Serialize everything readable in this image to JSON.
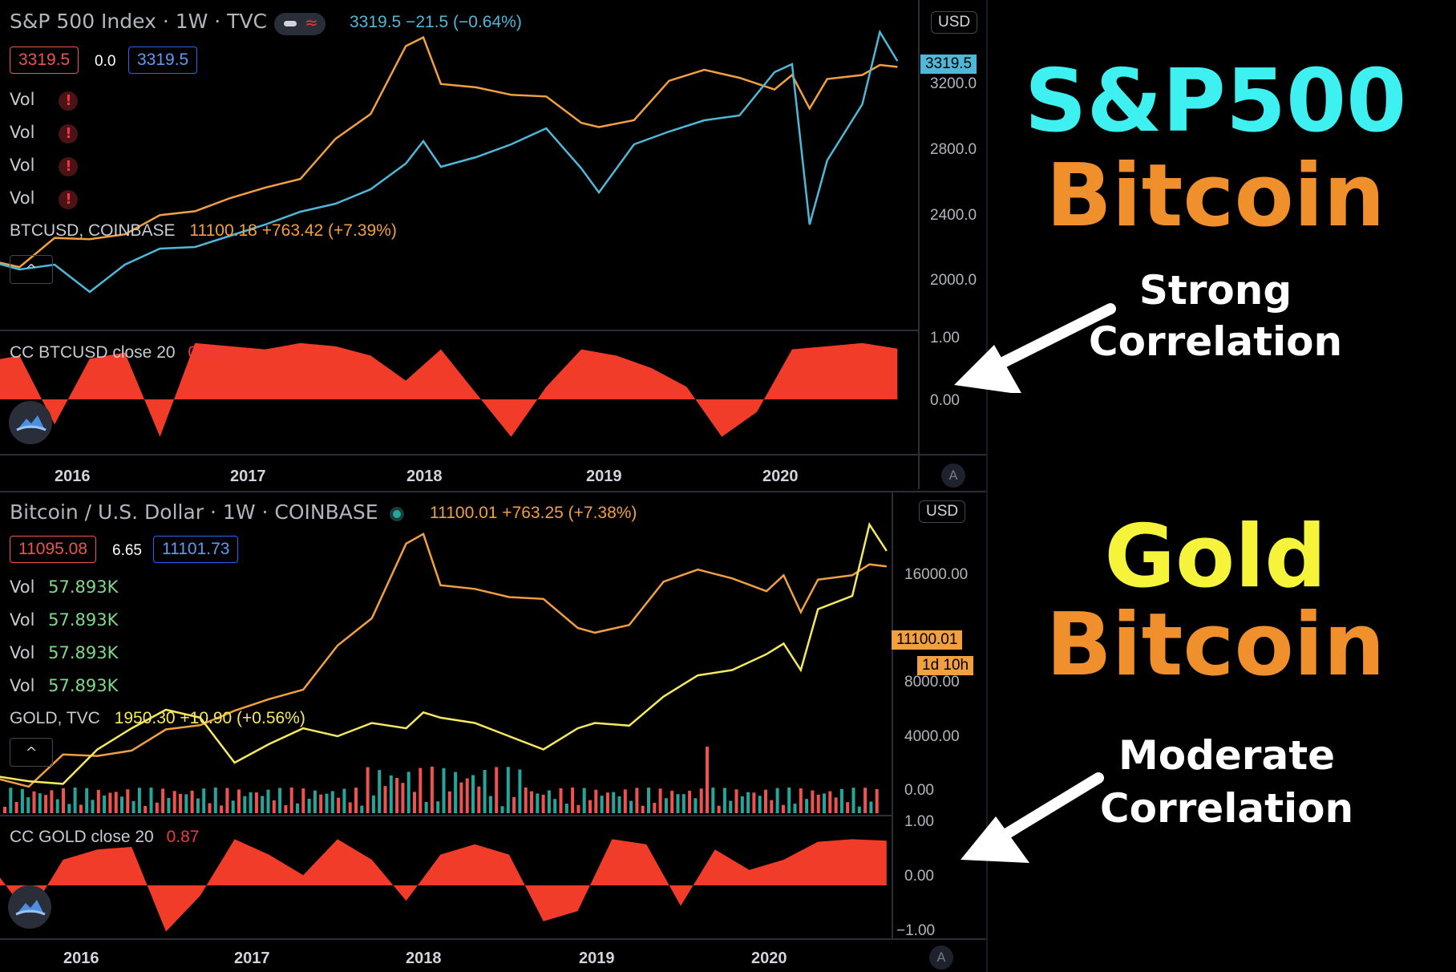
{
  "top": {
    "title": "S&P 500 Index · 1W · TVC",
    "quote": "3319.5  −21.5 (−0.64%)",
    "bid": "3319.5",
    "spread": "0.0",
    "ask": "3319.5",
    "vol_rows": [
      "Vol",
      "Vol",
      "Vol",
      "Vol"
    ],
    "overlay_name": "BTCUSD, COINBASE",
    "overlay_quote": "11100.18 +763.42 (+7.39%)",
    "currency": "USD",
    "last_price_tag": "3319.5",
    "price_ticks": [
      "3200.0",
      "2800.0",
      "2400.0",
      "2000.0"
    ],
    "indicator_label": "CC BTCUSD close 20",
    "indicator_value": "0.81",
    "indicator_ticks": [
      "1.00",
      "0.00"
    ],
    "years": [
      "2016",
      "2017",
      "2018",
      "2019",
      "2020"
    ],
    "auto_btn": "A",
    "collapse_glyph": "^"
  },
  "bottom": {
    "title": "Bitcoin / U.S. Dollar · 1W · COINBASE",
    "quote": "11100.01  +763.25 (+7.38%)",
    "bid": "11095.08",
    "spread": "6.65",
    "ask": "11101.73",
    "vol_rows": [
      {
        "label": "Vol",
        "value": "57.893K"
      },
      {
        "label": "Vol",
        "value": "57.893K"
      },
      {
        "label": "Vol",
        "value": "57.893K"
      },
      {
        "label": "Vol",
        "value": "57.893K"
      }
    ],
    "overlay_name": "GOLD, TVC",
    "overlay_quote": "1950.30 +10.90 (+0.56%)",
    "currency": "USD",
    "last_price_tag": "11100.01",
    "countdown_tag": "1d 10h",
    "price_ticks": [
      "16000.00",
      "8000.00",
      "4000.00",
      "0.00"
    ],
    "indicator_label": "CC GOLD close 20",
    "indicator_value": "0.87",
    "indicator_ticks": [
      "1.00",
      "0.00",
      "−1.00"
    ],
    "years": [
      "2016",
      "2017",
      "2018",
      "2019",
      "2020"
    ],
    "auto_btn": "A",
    "collapse_glyph": "^"
  },
  "annotations": {
    "top_line1": "S&P500",
    "top_line2": "Bitcoin",
    "top_caption1": "Strong",
    "top_caption2": "Correlation",
    "bottom_line1": "Gold",
    "bottom_line2": "Bitcoin",
    "bottom_caption1": "Moderate",
    "bottom_caption2": "Correlation"
  },
  "colors": {
    "spx": "#4fb8d8",
    "btc": "#f0a040",
    "gold": "#f5e960",
    "corr": "#f03c28",
    "vol_up": "#26a69a",
    "vol_down": "#ef5350",
    "cyan_title": "#3ff0f0",
    "orange_title": "#f0902c",
    "yellow_title": "#f5f43a"
  },
  "chart_data": [
    {
      "type": "line",
      "title": "S&P 500 Index · 1W · TVC",
      "x": [
        2015.5,
        2015.7,
        2015.9,
        2016.1,
        2016.3,
        2016.5,
        2016.7,
        2016.9,
        2017.1,
        2017.3,
        2017.5,
        2017.7,
        2017.9,
        2018.0,
        2018.1,
        2018.3,
        2018.5,
        2018.7,
        2018.9,
        2019.0,
        2019.2,
        2019.4,
        2019.6,
        2019.8,
        2020.0,
        2020.1,
        2020.2,
        2020.3,
        2020.5,
        2020.6,
        2020.7
      ],
      "series": [
        {
          "name": "S&P 500",
          "values": [
            2080,
            2020,
            2050,
            1880,
            2050,
            2150,
            2160,
            2230,
            2300,
            2380,
            2430,
            2520,
            2680,
            2820,
            2660,
            2720,
            2800,
            2900,
            2650,
            2500,
            2800,
            2880,
            2950,
            2980,
            3250,
            3300,
            2300,
            2700,
            3050,
            3500,
            3319.5
          ]
        },
        {
          "name": "BTCUSD, COINBASE",
          "values": [
            280,
            240,
            420,
            410,
            450,
            650,
            700,
            900,
            1100,
            1300,
            2800,
            4500,
            16500,
            19500,
            8000,
            7500,
            6500,
            6300,
            3800,
            3500,
            4000,
            8500,
            10500,
            9000,
            7200,
            9500,
            5000,
            8800,
            9500,
            11500,
            11100.18
          ]
        }
      ],
      "ylim": [
        1800,
        3500
      ]
    },
    {
      "type": "area",
      "title": "CC BTCUSD close 20",
      "x": [
        2015.5,
        2015.7,
        2015.9,
        2016.1,
        2016.3,
        2016.5,
        2016.7,
        2016.9,
        2017.1,
        2017.3,
        2017.5,
        2017.7,
        2017.9,
        2018.1,
        2018.3,
        2018.5,
        2018.7,
        2018.9,
        2019.1,
        2019.3,
        2019.5,
        2019.7,
        2019.9,
        2020.1,
        2020.3,
        2020.5,
        2020.7
      ],
      "values": [
        0.6,
        0.7,
        -0.4,
        0.65,
        0.75,
        -0.6,
        0.9,
        0.85,
        0.8,
        0.9,
        0.85,
        0.7,
        0.3,
        0.8,
        0.1,
        -0.6,
        0.2,
        0.8,
        0.7,
        0.5,
        0.2,
        -0.6,
        -0.2,
        0.8,
        0.85,
        0.9,
        0.81
      ],
      "ylim": [
        -0.8,
        1.0
      ]
    },
    {
      "type": "line",
      "title": "Bitcoin / U.S. Dollar · 1W · COINBASE",
      "x": [
        2015.5,
        2015.7,
        2015.9,
        2016.1,
        2016.3,
        2016.5,
        2016.7,
        2016.9,
        2017.1,
        2017.3,
        2017.5,
        2017.7,
        2017.9,
        2018.0,
        2018.1,
        2018.3,
        2018.5,
        2018.7,
        2018.9,
        2019.0,
        2019.2,
        2019.4,
        2019.6,
        2019.8,
        2020.0,
        2020.1,
        2020.2,
        2020.3,
        2020.5,
        2020.6,
        2020.7
      ],
      "series": [
        {
          "name": "Bitcoin / U.S. Dollar",
          "values": [
            280,
            240,
            420,
            410,
            450,
            650,
            700,
            900,
            1100,
            1300,
            2800,
            4500,
            16500,
            19500,
            8000,
            7500,
            6500,
            6300,
            3800,
            3500,
            4000,
            8500,
            10500,
            9000,
            7200,
            9500,
            5000,
            8800,
            9500,
            11500,
            11100.01
          ]
        },
        {
          "name": "GOLD, TVC",
          "values": [
            1100,
            1080,
            1070,
            1200,
            1280,
            1350,
            1320,
            1150,
            1220,
            1280,
            1250,
            1300,
            1280,
            1340,
            1320,
            1300,
            1250,
            1200,
            1280,
            1300,
            1290,
            1400,
            1480,
            1500,
            1560,
            1600,
            1500,
            1730,
            1780,
            2050,
            1950.3
          ]
        }
      ],
      "ylim": [
        0,
        20000
      ]
    },
    {
      "type": "area",
      "title": "CC GOLD close 20",
      "x": [
        2015.5,
        2015.7,
        2015.9,
        2016.1,
        2016.3,
        2016.5,
        2016.7,
        2016.9,
        2017.1,
        2017.3,
        2017.5,
        2017.7,
        2017.9,
        2018.1,
        2018.3,
        2018.5,
        2018.7,
        2018.9,
        2019.1,
        2019.3,
        2019.5,
        2019.7,
        2019.9,
        2020.1,
        2020.3,
        2020.5,
        2020.7
      ],
      "values": [
        0.3,
        -0.6,
        0.5,
        0.7,
        0.75,
        -0.9,
        -0.2,
        0.9,
        0.6,
        0.2,
        0.9,
        0.5,
        -0.3,
        0.6,
        0.8,
        0.6,
        -0.7,
        -0.5,
        0.9,
        0.8,
        -0.4,
        0.7,
        0.3,
        0.5,
        0.85,
        0.9,
        0.87
      ],
      "ylim": [
        -1.0,
        1.0
      ]
    }
  ]
}
